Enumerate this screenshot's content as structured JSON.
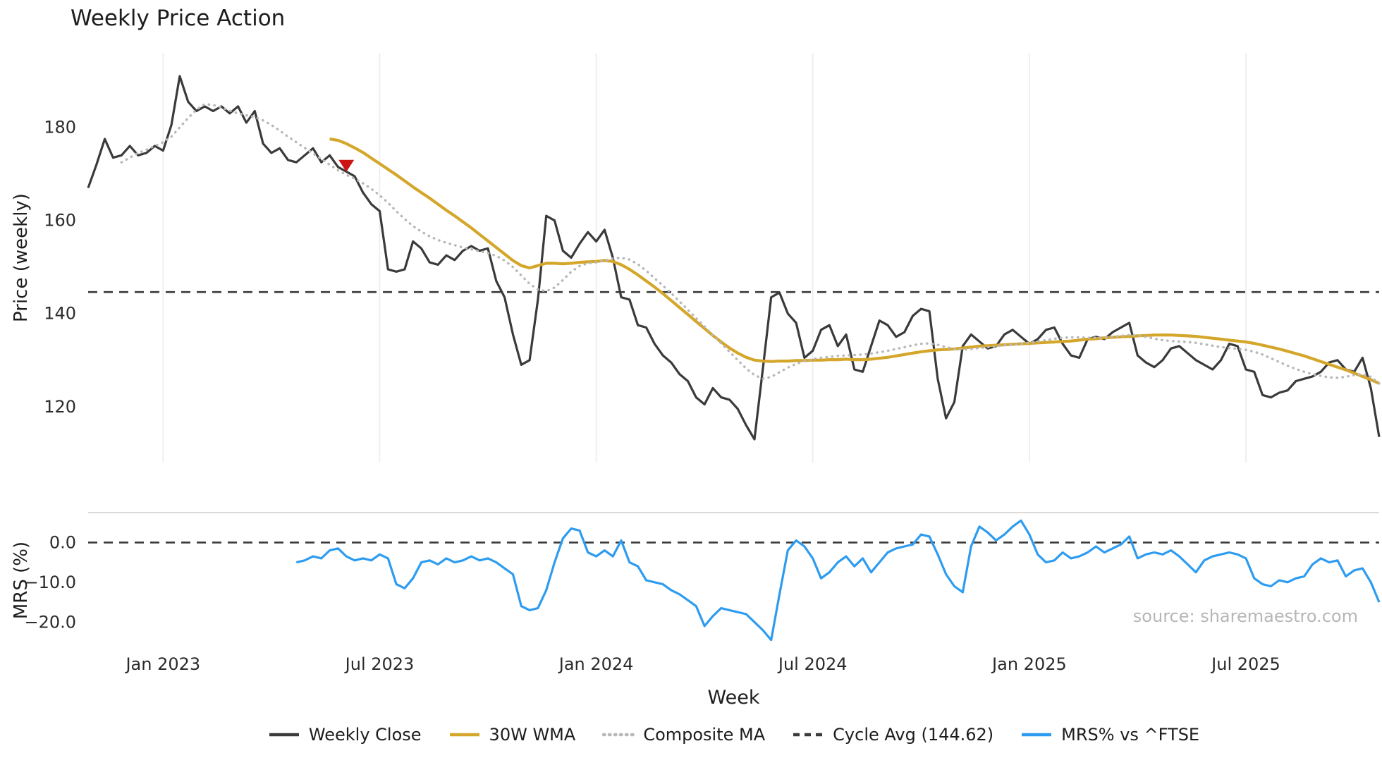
{
  "title": "Weekly Price Action",
  "source": "source: sharemaestro.com",
  "colors": {
    "weekly_close": "#3a3a3a",
    "wma": "#d4a62a",
    "composite": "#b8b8b8",
    "cycle_avg": "#3a3a3a",
    "mrs": "#2d9cf0",
    "signal": "#cc1414",
    "grid": "#ececec",
    "axis_text": "#2b2b2b",
    "source_text": "#b6b6b6"
  },
  "legend": [
    {
      "label": "Weekly Close",
      "color_key": "weekly_close",
      "style": "solid"
    },
    {
      "label": "30W WMA",
      "color_key": "wma",
      "style": "solid"
    },
    {
      "label": "Composite MA",
      "color_key": "composite",
      "style": "dotted"
    },
    {
      "label": "Cycle Avg (144.62)",
      "color_key": "cycle_avg",
      "style": "dashed"
    },
    {
      "label": "MRS% vs ^FTSE",
      "color_key": "mrs",
      "style": "solid"
    }
  ],
  "chart_data": {
    "type": "line",
    "title": "Weekly Price Action",
    "xlabel": "Week",
    "weeks_total": 156,
    "x_ticks": [
      {
        "week": 9,
        "label": "Jan 2023"
      },
      {
        "week": 35,
        "label": "Jul 2023"
      },
      {
        "week": 61,
        "label": "Jan 2024"
      },
      {
        "week": 87,
        "label": "Jul 2024"
      },
      {
        "week": 113,
        "label": "Jan 2025"
      },
      {
        "week": 139,
        "label": "Jul 2025"
      }
    ],
    "panels": [
      {
        "name": "price",
        "ylabel": "Price (weekly)",
        "ylim": [
          108,
          196
        ],
        "yticks": [
          {
            "value": 120,
            "label": "120"
          },
          {
            "value": 140,
            "label": "140"
          },
          {
            "value": 160,
            "label": "160"
          },
          {
            "value": 180,
            "label": "180"
          }
        ],
        "hlines": [
          {
            "value": 144.62,
            "style": "dashed",
            "color_key": "cycle_avg",
            "label": "Cycle Avg (144.62)"
          }
        ],
        "markers": [
          {
            "type": "sell-triangle",
            "week": 31,
            "value": 171.8,
            "color_key": "signal"
          }
        ],
        "series": [
          {
            "name": "Weekly Close",
            "color_key": "weekly_close",
            "style": "solid",
            "width": 3.2,
            "start_week": 0,
            "values": [
              167,
              172,
              177.5,
              173.5,
              174,
              176,
              174,
              174.5,
              176,
              175,
              180.5,
              191,
              185.5,
              183.5,
              184.5,
              183.5,
              184.5,
              183,
              184.5,
              181,
              183.5,
              176.5,
              174.5,
              175.5,
              173,
              172.5,
              174,
              175.5,
              172.5,
              174,
              171.5,
              170.5,
              169.5,
              166,
              163.5,
              162,
              149.5,
              149,
              149.5,
              155.5,
              154,
              151,
              150.5,
              152.5,
              151.5,
              153.5,
              154.5,
              153.5,
              154,
              147,
              143.5,
              135.5,
              129,
              130,
              143,
              161,
              160,
              153.5,
              152,
              155,
              157.5,
              155.5,
              158,
              152,
              143.5,
              143,
              137.5,
              137,
              133.5,
              131,
              129.5,
              127,
              125.5,
              122,
              120.5,
              124,
              122,
              121.5,
              119.5,
              116,
              113,
              128,
              143.5,
              144.5,
              140,
              138,
              130.5,
              132,
              136.5,
              137.5,
              133,
              135.5,
              128,
              127.5,
              133,
              138.5,
              137.5,
              135,
              136,
              139.5,
              141,
              140.5,
              126,
              117.5,
              121,
              133,
              135.5,
              134,
              132.5,
              133,
              135.5,
              136.5,
              135,
              133.5,
              134.5,
              136.5,
              137,
              133.5,
              131,
              130.5,
              134.5,
              135,
              134.5,
              136,
              137,
              138,
              131,
              129.5,
              128.5,
              130,
              132.5,
              133,
              131.5,
              130,
              129,
              128,
              130,
              133.5,
              133,
              128,
              127.5,
              122.5,
              122,
              123,
              123.5,
              125.5,
              126,
              126.5,
              127.5,
              129.5,
              130,
              128,
              127.5,
              130.5,
              124,
              113.5
            ]
          },
          {
            "name": "30W WMA",
            "color_key": "wma",
            "style": "solid",
            "width": 4.2,
            "start_week": 29,
            "values": [
              177.5,
              177.2,
              176.5,
              175.6,
              174.6,
              173.4,
              172.2,
              171,
              169.8,
              168.5,
              167.2,
              166,
              164.8,
              163.5,
              162.2,
              161,
              159.7,
              158.4,
              157,
              155.6,
              154.2,
              152.8,
              151.4,
              150.3,
              149.8,
              150.3,
              150.8,
              150.8,
              150.7,
              150.8,
              151,
              151.1,
              151.2,
              151.4,
              151.2,
              150.5,
              149.5,
              148.3,
              147,
              145.7,
              144.3,
              142.8,
              141.3,
              139.8,
              138.3,
              136.8,
              135.3,
              133.9,
              132.6,
              131.5,
              130.6,
              130,
              129.8,
              129.7,
              129.8,
              129.8,
              129.9,
              129.9,
              130,
              130,
              130.1,
              130.1,
              130.2,
              130.1,
              130.1,
              130.2,
              130.4,
              130.6,
              130.9,
              131.2,
              131.5,
              131.8,
              132,
              132.2,
              132.3,
              132.4,
              132.6,
              132.8,
              133,
              133.1,
              133.2,
              133.3,
              133.4,
              133.5,
              133.6,
              133.7,
              133.8,
              133.9,
              134,
              134.1,
              134.3,
              134.5,
              134.6,
              134.8,
              134.9,
              135,
              135.1,
              135.2,
              135.3,
              135.4,
              135.4,
              135.4,
              135.3,
              135.2,
              135.1,
              134.9,
              134.7,
              134.5,
              134.3,
              134.1,
              133.9,
              133.6,
              133.2,
              132.8,
              132.4,
              131.9,
              131.4,
              130.9,
              130.3,
              129.7,
              129.1,
              128.5,
              127.9,
              127.2,
              126.5,
              125.8,
              125
            ]
          },
          {
            "name": "Composite MA",
            "color_key": "composite",
            "style": "dotted",
            "width": 3.4,
            "start_week": 4,
            "values": [
              172.5,
              173.5,
              174.5,
              175.2,
              176,
              176.8,
              178,
              180,
              182,
              183.8,
              185,
              184.8,
              184.3,
              183.6,
              183,
              182.6,
              182.2,
              181.5,
              180.5,
              179.3,
              178,
              176.8,
              175.6,
              174.4,
              173.2,
              172,
              170.8,
              169.8,
              169,
              168,
              166.8,
              165.4,
              163.8,
              162,
              160.3,
              158.8,
              157.6,
              156.6,
              155.8,
              155.2,
              154.7,
              154.2,
              153.8,
              153.4,
              153,
              152.4,
              151.4,
              150,
              148.2,
              146.4,
              145.2,
              144.8,
              145.6,
              147.2,
              149,
              150.2,
              150.8,
              151,
              151.4,
              151.8,
              152,
              151.6,
              150.6,
              149.2,
              147.6,
              146,
              144.4,
              142.6,
              140.8,
              139,
              137.2,
              135.4,
              133.6,
              131.8,
              130,
              128.2,
              126.8,
              126,
              126.4,
              127.4,
              128.4,
              129.2,
              129.8,
              130.2,
              130.5,
              130.7,
              130.9,
              131,
              131.1,
              131.2,
              131.4,
              131.7,
              132,
              132.4,
              132.8,
              133.2,
              133.5,
              133.6,
              133.3,
              132.8,
              132.4,
              132.3,
              132.4,
              132.6,
              132.8,
              133,
              133.2,
              133.3,
              133.5,
              133.7,
              134,
              134.3,
              134.6,
              134.8,
              134.9,
              134.9,
              134.8,
              134.8,
              134.9,
              135,
              135.2,
              135.4,
              135.3,
              135,
              134.6,
              134.3,
              134.1,
              134,
              133.9,
              133.7,
              133.4,
              133.1,
              132.8,
              132.6,
              132.4,
              132.2,
              131.8,
              131.2,
              130.4,
              129.6,
              128.8,
              128.1,
              127.5,
              127,
              126.6,
              126.3,
              126.2,
              126.4,
              126.8,
              127,
              126.4,
              125
            ]
          }
        ]
      },
      {
        "name": "mrs",
        "ylabel": "MRS (%)",
        "ylim": [
          -26.5,
          7.5
        ],
        "top_border": true,
        "yticks": [
          {
            "value": 0,
            "label": "0.0"
          },
          {
            "value": -10,
            "label": "−10.0"
          },
          {
            "value": -20,
            "label": "−20.0"
          }
        ],
        "hlines": [
          {
            "value": 0,
            "style": "dashed",
            "color_key": "cycle_avg",
            "label": "zero"
          }
        ],
        "series": [
          {
            "name": "MRS% vs ^FTSE",
            "color_key": "mrs",
            "style": "solid",
            "width": 3.2,
            "start_week": 25,
            "values": [
              -5,
              -4.5,
              -3.5,
              -4,
              -2,
              -1.5,
              -3.5,
              -4.5,
              -4,
              -4.5,
              -3,
              -4,
              -10.5,
              -11.5,
              -9,
              -5,
              -4.5,
              -5.5,
              -4,
              -5,
              -4.5,
              -3.5,
              -4.5,
              -4,
              -5,
              -6.5,
              -8,
              -16,
              -17,
              -16.5,
              -12,
              -5,
              1,
              3.5,
              3,
              -2.5,
              -3.5,
              -2,
              -3.5,
              0.5,
              -5,
              -6,
              -9.5,
              -10,
              -10.5,
              -12,
              -13,
              -14.5,
              -16,
              -21,
              -18.5,
              -16.5,
              -17,
              -17.5,
              -18,
              -20,
              -22,
              -24.5,
              -13,
              -2,
              0.5,
              -1,
              -4,
              -9,
              -7.5,
              -5,
              -3.5,
              -6,
              -4,
              -7.5,
              -5,
              -2.5,
              -1.5,
              -1,
              -0.5,
              2,
              1.5,
              -3,
              -8,
              -11,
              -12.5,
              -1,
              4,
              2.5,
              0.5,
              2,
              4,
              5.5,
              2,
              -3,
              -5,
              -4.5,
              -2.5,
              -4,
              -3.5,
              -2.5,
              -1,
              -2.5,
              -1.5,
              -0.5,
              1.5,
              -4,
              -3,
              -2.5,
              -3,
              -2,
              -3.5,
              -5.5,
              -7.5,
              -4.5,
              -3.5,
              -3,
              -2.5,
              -3,
              -4,
              -9,
              -10.5,
              -11,
              -9.5,
              -10,
              -9,
              -8.5,
              -5.5,
              -4,
              -5,
              -4.5,
              -8.5,
              -7,
              -6.5,
              -10,
              -15
            ]
          }
        ]
      }
    ]
  }
}
